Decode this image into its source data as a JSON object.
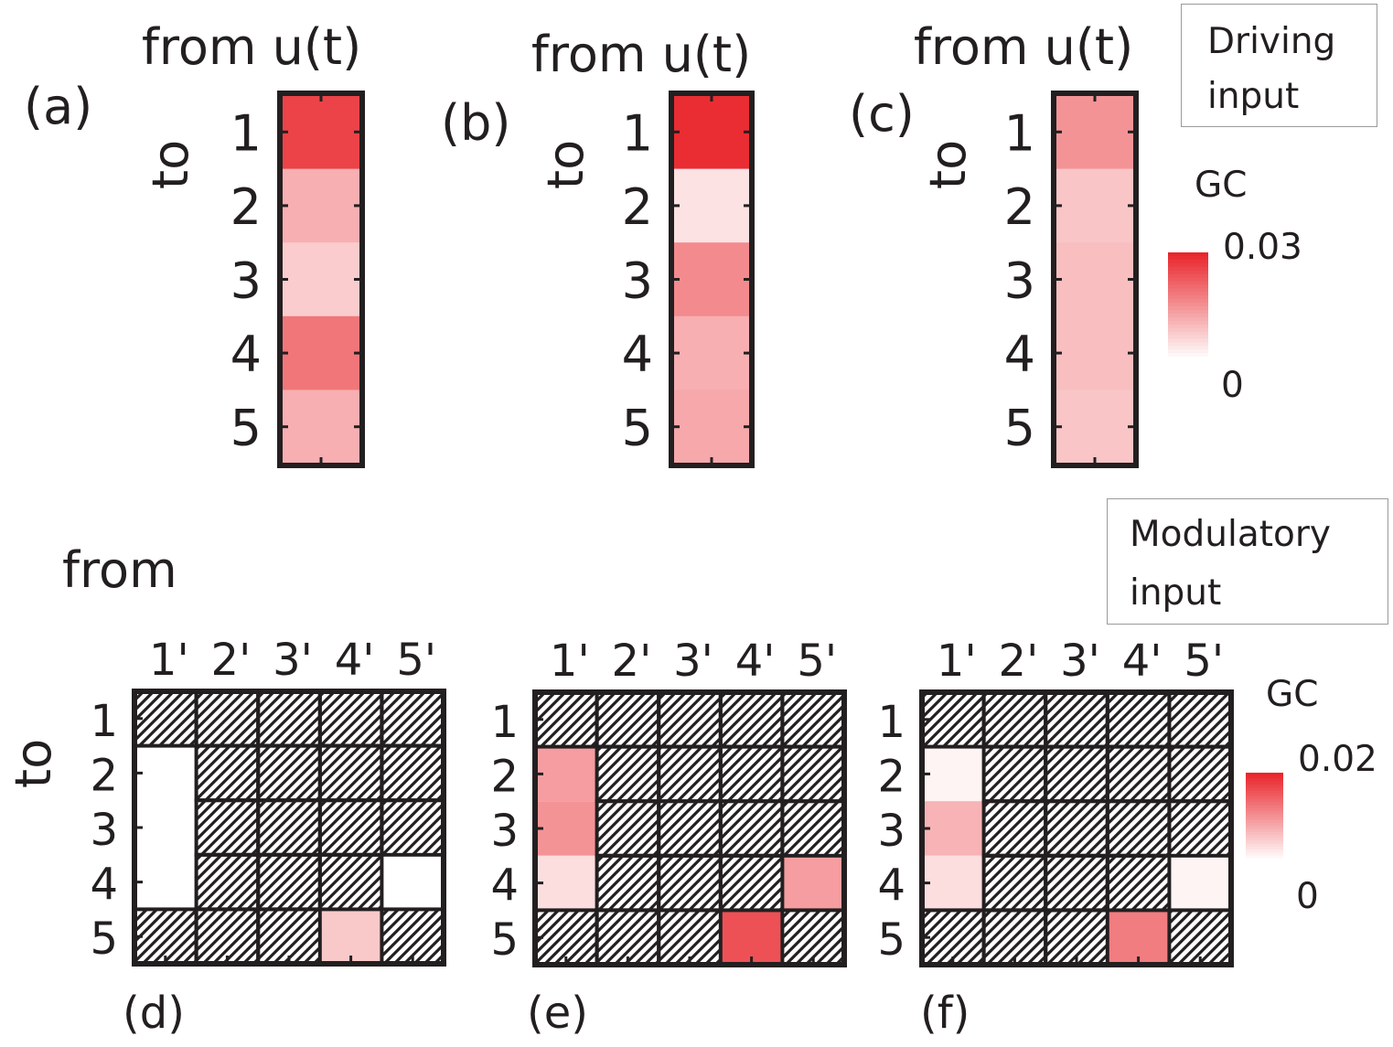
{
  "colors": {
    "high": "#e8262c",
    "low": "#ffffff",
    "frame": "#231f20",
    "text": "#231f20"
  },
  "driving_box": {
    "line1": "Driving",
    "line2": "input"
  },
  "modulatory_box": {
    "line1": "Modulatory",
    "line2": "input"
  },
  "modulatory_from_label": "from",
  "chart_data": [
    {
      "panel": "(a)",
      "type": "heatmap",
      "title": "from u(t)",
      "ylabel": "to",
      "rows": [
        "1",
        "2",
        "3",
        "4",
        "5"
      ],
      "values": [
        0.026,
        0.011,
        0.007,
        0.019,
        0.011
      ]
    },
    {
      "panel": "(b)",
      "type": "heatmap",
      "title": "from u(t)",
      "ylabel": "to",
      "rows": [
        "1",
        "2",
        "3",
        "4",
        "5"
      ],
      "values": [
        0.029,
        0.004,
        0.016,
        0.011,
        0.012
      ]
    },
    {
      "panel": "(c)",
      "type": "heatmap",
      "title": "from u(t)",
      "ylabel": "to",
      "rows": [
        "1",
        "2",
        "3",
        "4",
        "5"
      ],
      "values": [
        0.015,
        0.008,
        0.009,
        0.009,
        0.008
      ]
    },
    {
      "colorbar": "driving",
      "label": "GC",
      "max_label": "0.03",
      "min_label": "0",
      "range": [
        0,
        0.03
      ]
    },
    {
      "panel": "(d)",
      "type": "heatmap",
      "ylabel": "to",
      "rows": [
        "1",
        "2",
        "3",
        "4",
        "5"
      ],
      "columns": [
        "1'",
        "2'",
        "3'",
        "4'",
        "5'"
      ],
      "values": [
        [
          null,
          null,
          null,
          null,
          null
        ],
        [
          0,
          null,
          null,
          null,
          null
        ],
        [
          0,
          null,
          null,
          null,
          null
        ],
        [
          0,
          null,
          null,
          null,
          0
        ],
        [
          null,
          null,
          null,
          0.005,
          null
        ]
      ]
    },
    {
      "panel": "(e)",
      "type": "heatmap",
      "ylabel": "to",
      "rows": [
        "1",
        "2",
        "3",
        "4",
        "5"
      ],
      "columns": [
        "1'",
        "2'",
        "3'",
        "4'",
        "5'"
      ],
      "values": [
        [
          null,
          null,
          null,
          null,
          null
        ],
        [
          0.009,
          null,
          null,
          null,
          null
        ],
        [
          0.01,
          null,
          null,
          null,
          null
        ],
        [
          0.003,
          null,
          null,
          null,
          0.009
        ],
        [
          null,
          null,
          null,
          0.016,
          null
        ]
      ]
    },
    {
      "panel": "(f)",
      "type": "heatmap",
      "ylabel": "to",
      "rows": [
        "1",
        "2",
        "3",
        "4",
        "5"
      ],
      "columns": [
        "1'",
        "2'",
        "3'",
        "4'",
        "5'"
      ],
      "values": [
        [
          null,
          null,
          null,
          null,
          null
        ],
        [
          0.001,
          null,
          null,
          null,
          null
        ],
        [
          0.007,
          null,
          null,
          null,
          null
        ],
        [
          0.003,
          null,
          null,
          null,
          0.001
        ],
        [
          null,
          null,
          null,
          0.012,
          null
        ]
      ]
    },
    {
      "colorbar": "modulatory",
      "label": "GC",
      "max_label": "0.02",
      "min_label": "0",
      "range": [
        0,
        0.02
      ]
    }
  ]
}
